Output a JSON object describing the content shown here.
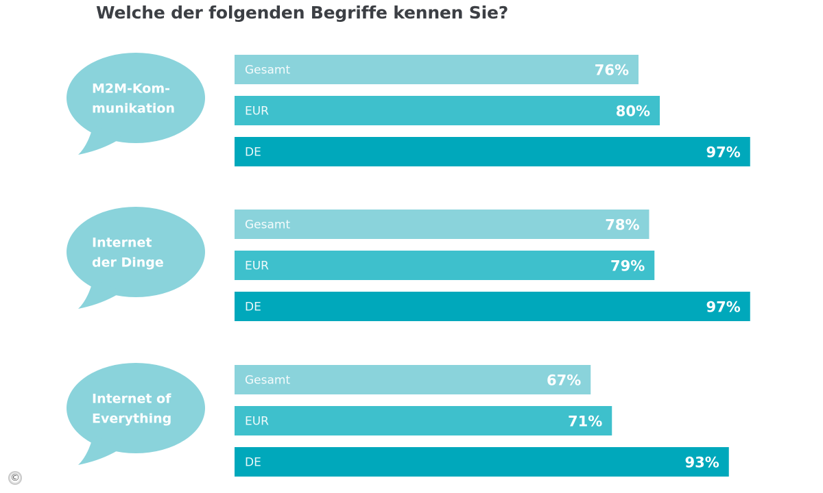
{
  "chart_data": {
    "type": "bar",
    "orientation": "horizontal",
    "title": "Welche der folgenden Begriffe kennen Sie?",
    "xlabel": "",
    "ylabel": "",
    "xlim": [
      0,
      100
    ],
    "grid": false,
    "legend": "none",
    "unit": "%",
    "groups": [
      {
        "name": "M2M-Kommunikation",
        "bubble_lines": [
          "M2M-Kom-",
          "munikation"
        ],
        "bars": [
          {
            "category": "Gesamt",
            "value": 76,
            "label": "76%"
          },
          {
            "category": "EUR",
            "value": 80,
            "label": "80%"
          },
          {
            "category": "DE",
            "value": 97,
            "label": "97%"
          }
        ]
      },
      {
        "name": "Internet der Dinge",
        "bubble_lines": [
          "Internet",
          "der Dinge"
        ],
        "bars": [
          {
            "category": "Gesamt",
            "value": 78,
            "label": "78%"
          },
          {
            "category": "EUR",
            "value": 79,
            "label": "79%"
          },
          {
            "category": "DE",
            "value": 97,
            "label": "97%"
          }
        ]
      },
      {
        "name": "Internet of Everything",
        "bubble_lines": [
          "Internet of",
          "Everything"
        ],
        "bars": [
          {
            "category": "Gesamt",
            "value": 67,
            "label": "67%"
          },
          {
            "category": "EUR",
            "value": 71,
            "label": "71%"
          },
          {
            "category": "DE",
            "value": 93,
            "label": "93%"
          }
        ]
      }
    ],
    "series": [
      {
        "name": "Gesamt",
        "color": "#8ad3db",
        "values": [
          76,
          78,
          67
        ]
      },
      {
        "name": "EUR",
        "color": "#3ec0cc",
        "values": [
          80,
          79,
          71
        ]
      },
      {
        "name": "DE",
        "color": "#00a8bb",
        "values": [
          97,
          97,
          93
        ]
      }
    ],
    "categories": [
      "M2M-Kommunikation",
      "Internet der Dinge",
      "Internet of Everything"
    ]
  },
  "colors": {
    "bubble": "#8ad3db",
    "title": "#3c3f44",
    "label_text": "#ffffff"
  },
  "footer": {
    "copyright_symbol": "©"
  }
}
